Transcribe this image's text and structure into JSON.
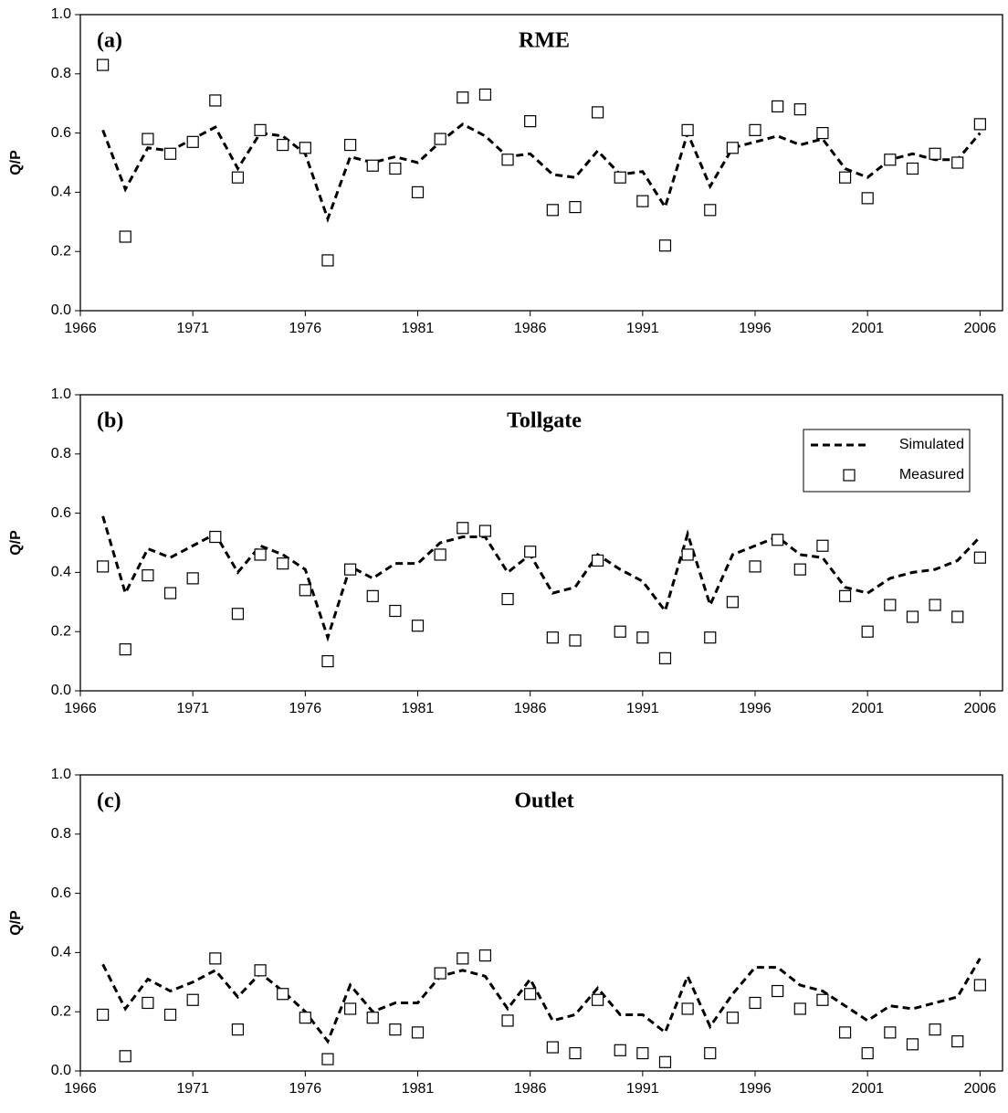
{
  "chart_data": [
    {
      "type": "line",
      "annotation": "(a)",
      "title": "RME",
      "ylabel": "Q/P",
      "x": [
        1967,
        1968,
        1969,
        1970,
        1971,
        1972,
        1973,
        1974,
        1975,
        1976,
        1977,
        1978,
        1979,
        1980,
        1981,
        1982,
        1983,
        1984,
        1985,
        1986,
        1987,
        1988,
        1989,
        1990,
        1991,
        1992,
        1993,
        1994,
        1995,
        1996,
        1997,
        1998,
        1999,
        2000,
        2001,
        2002,
        2003,
        2004,
        2005,
        2006
      ],
      "xlim": [
        1966,
        2007
      ],
      "xticks": [
        1966,
        1971,
        1976,
        1981,
        1986,
        1991,
        1996,
        2001,
        2006
      ],
      "ylim": [
        0,
        1
      ],
      "yticks": [
        {
          "value": 0,
          "label": "0.0"
        },
        0.2,
        0.4,
        0.6,
        0.8,
        {
          "value": 1,
          "label": "1.0"
        }
      ],
      "series": [
        {
          "color": "#000000",
          "line_style": "dashed",
          "values": [
            0.61,
            0.41,
            0.55,
            0.54,
            0.58,
            0.62,
            0.48,
            0.6,
            0.59,
            0.53,
            0.31,
            0.52,
            0.5,
            0.52,
            0.5,
            0.57,
            0.63,
            0.59,
            0.52,
            0.53,
            0.46,
            0.45,
            0.54,
            0.46,
            0.47,
            0.35,
            0.6,
            0.42,
            0.55,
            0.57,
            0.59,
            0.56,
            0.58,
            0.48,
            0.45,
            0.51,
            0.53,
            0.51,
            0.51,
            0.6
          ]
        },
        {
          "color": "#000000",
          "marker": "square",
          "values": [
            0.83,
            0.25,
            0.58,
            0.53,
            0.57,
            0.71,
            0.45,
            0.61,
            0.56,
            0.55,
            0.17,
            0.56,
            0.49,
            0.48,
            0.4,
            0.58,
            0.72,
            0.73,
            0.51,
            0.64,
            0.34,
            0.35,
            0.67,
            0.45,
            0.37,
            0.22,
            0.61,
            0.34,
            0.55,
            0.61,
            0.69,
            0.68,
            0.6,
            0.45,
            0.38,
            0.51,
            0.48,
            0.53,
            0.5,
            0.63
          ]
        }
      ]
    },
    {
      "type": "line",
      "annotation": "(b)",
      "title": "Tollgate",
      "ylabel": "Q/P",
      "legend": "upper right",
      "x": [
        1967,
        1968,
        1969,
        1970,
        1971,
        1972,
        1973,
        1974,
        1975,
        1976,
        1977,
        1978,
        1979,
        1980,
        1981,
        1982,
        1983,
        1984,
        1985,
        1986,
        1987,
        1988,
        1989,
        1990,
        1991,
        1992,
        1993,
        1994,
        1995,
        1996,
        1997,
        1998,
        1999,
        2000,
        2001,
        2002,
        2003,
        2004,
        2005,
        2006
      ],
      "xlim": [
        1966,
        2007
      ],
      "xticks": [
        1966,
        1971,
        1976,
        1981,
        1986,
        1991,
        1996,
        2001,
        2006
      ],
      "ylim": [
        0,
        1
      ],
      "yticks": [
        {
          "value": 0,
          "label": "0.0"
        },
        0.2,
        0.4,
        0.6,
        0.8,
        {
          "value": 1,
          "label": "1.0"
        }
      ],
      "series": [
        {
          "name": "Simulated",
          "color": "#000000",
          "line_style": "dashed",
          "values": [
            0.59,
            0.33,
            0.48,
            0.45,
            0.49,
            0.53,
            0.4,
            0.49,
            0.46,
            0.41,
            0.18,
            0.42,
            0.38,
            0.43,
            0.43,
            0.5,
            0.52,
            0.52,
            0.4,
            0.46,
            0.33,
            0.35,
            0.46,
            0.41,
            0.37,
            0.27,
            0.53,
            0.29,
            0.46,
            0.49,
            0.52,
            0.46,
            0.45,
            0.35,
            0.33,
            0.38,
            0.4,
            0.41,
            0.44,
            0.52
          ]
        },
        {
          "name": "Measured",
          "color": "#000000",
          "marker": "square",
          "values": [
            0.42,
            0.14,
            0.39,
            0.33,
            0.38,
            0.52,
            0.26,
            0.46,
            0.43,
            0.34,
            0.1,
            0.41,
            0.32,
            0.27,
            0.22,
            0.46,
            0.55,
            0.54,
            0.31,
            0.47,
            0.18,
            0.17,
            0.44,
            0.2,
            0.18,
            0.11,
            0.46,
            0.18,
            0.3,
            0.42,
            0.51,
            0.41,
            0.49,
            0.32,
            0.2,
            0.29,
            0.25,
            0.29,
            0.25,
            0.45
          ]
        }
      ]
    },
    {
      "type": "line",
      "annotation": "(c)",
      "title": "Outlet",
      "ylabel": "Q/P",
      "x": [
        1967,
        1968,
        1969,
        1970,
        1971,
        1972,
        1973,
        1974,
        1975,
        1976,
        1977,
        1978,
        1979,
        1980,
        1981,
        1982,
        1983,
        1984,
        1985,
        1986,
        1987,
        1988,
        1989,
        1990,
        1991,
        1992,
        1993,
        1994,
        1995,
        1996,
        1997,
        1998,
        1999,
        2000,
        2001,
        2002,
        2003,
        2004,
        2005,
        2006
      ],
      "xlim": [
        1966,
        2007
      ],
      "xticks": [
        1966,
        1971,
        1976,
        1981,
        1986,
        1991,
        1996,
        2001,
        2006
      ],
      "ylim": [
        0,
        1
      ],
      "yticks": [
        {
          "value": 0,
          "label": "0.0"
        },
        0.2,
        0.4,
        0.6,
        0.8,
        {
          "value": 1,
          "label": "1.0"
        }
      ],
      "series": [
        {
          "color": "#000000",
          "line_style": "dashed",
          "values": [
            0.36,
            0.21,
            0.31,
            0.27,
            0.3,
            0.34,
            0.25,
            0.33,
            0.27,
            0.2,
            0.1,
            0.29,
            0.2,
            0.23,
            0.23,
            0.32,
            0.34,
            0.32,
            0.21,
            0.31,
            0.17,
            0.19,
            0.28,
            0.19,
            0.19,
            0.13,
            0.32,
            0.15,
            0.26,
            0.35,
            0.35,
            0.29,
            0.27,
            0.22,
            0.17,
            0.22,
            0.21,
            0.23,
            0.25,
            0.38
          ]
        },
        {
          "color": "#000000",
          "marker": "square",
          "values": [
            0.19,
            0.05,
            0.23,
            0.19,
            0.24,
            0.38,
            0.14,
            0.34,
            0.26,
            0.18,
            0.04,
            0.21,
            0.18,
            0.14,
            0.13,
            0.33,
            0.38,
            0.39,
            0.17,
            0.26,
            0.08,
            0.06,
            0.24,
            0.07,
            0.06,
            0.03,
            0.21,
            0.06,
            0.18,
            0.23,
            0.27,
            0.21,
            0.24,
            0.13,
            0.06,
            0.13,
            0.09,
            0.14,
            0.1,
            0.29
          ]
        }
      ]
    }
  ]
}
